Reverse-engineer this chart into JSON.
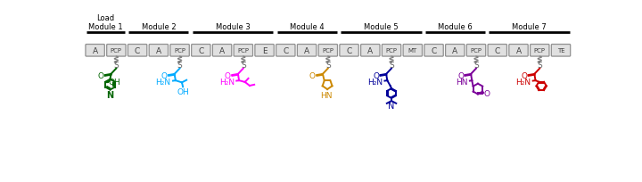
{
  "bg_color": "#ffffff",
  "all_domains": [
    "A",
    "PCP",
    "C",
    "A",
    "PCP",
    "C",
    "A",
    "PCP",
    "E",
    "C",
    "A",
    "PCP",
    "C",
    "A",
    "PCP",
    "MT",
    "C",
    "A",
    "PCP",
    "C",
    "A",
    "PCP",
    "TE"
  ],
  "module_ranges": [
    [
      0,
      1
    ],
    [
      2,
      4
    ],
    [
      5,
      8
    ],
    [
      9,
      11
    ],
    [
      12,
      15
    ],
    [
      16,
      18
    ],
    [
      19,
      22
    ]
  ],
  "module_names": [
    "Load\nModule 1",
    "Module 2",
    "Module 3",
    "Module 4",
    "Module 5",
    "Module 6",
    "Module 7"
  ],
  "pcp_indices": [
    1,
    4,
    7,
    11,
    14,
    18,
    21
  ],
  "substrate_colors": [
    "#006400",
    "#00AAFF",
    "#FF00FF",
    "#CC8800",
    "#000099",
    "#7B0099",
    "#CC0000"
  ],
  "domain_box_color": "#e0e0e0",
  "domain_border_color": "#909090",
  "module_bar_color": "#000000",
  "wavy_color": "#808080",
  "s_color": "#606060"
}
